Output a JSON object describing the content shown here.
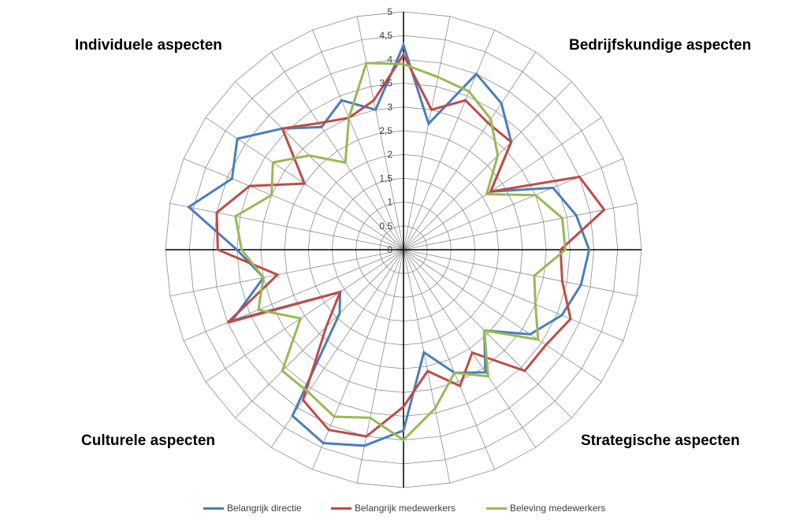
{
  "quadrant_titles": {
    "top_left": "Individuele aspecten",
    "top_right": "Bedrijfskundige aspecten",
    "bottom_left": "Culturele aspecten",
    "bottom_right": "Strategische aspecten"
  },
  "chart_data": {
    "type": "radar",
    "title": "",
    "axis_count": 32,
    "rmin": 0,
    "rmax": 5,
    "tick_step": 0.5,
    "tick_labels": [
      "0",
      "0,5",
      "1",
      "1,5",
      "2",
      "2,5",
      "3",
      "3,5",
      "4",
      "4,5",
      "5"
    ],
    "grid": true,
    "legend_position": "bottom",
    "series": [
      {
        "name": "Belangrijk directie",
        "color": "#4a7ebb",
        "values": [
          4.3,
          2.7,
          4.0,
          3.7,
          3.2,
          2.2,
          3.4,
          3.7,
          3.9,
          3.8,
          3.6,
          3.2,
          2.4,
          3.1,
          2.8,
          2.2,
          3.8,
          4.2,
          4.4,
          4.2,
          1.9,
          1.6,
          3.9,
          3.0,
          3.5,
          4.6,
          3.9,
          4.2,
          3.6,
          3.1,
          3.4,
          3.0
        ]
      },
      {
        "name": "Belangrijk medewerkers",
        "color": "#be4b48",
        "values": [
          4.1,
          3.0,
          3.4,
          3.2,
          3.2,
          2.2,
          4.0,
          4.3,
          3.3,
          3.4,
          3.8,
          3.6,
          3.6,
          2.6,
          3.1,
          2.6,
          3.3,
          4.0,
          4.1,
          3.8,
          2.3,
          1.6,
          4.0,
          2.7,
          3.9,
          4.0,
          3.5,
          2.5,
          3.6,
          3.2,
          3.0,
          3.2
        ]
      },
      {
        "name": "Beleving medewerkers",
        "color": "#98b954",
        "values": [
          3.9,
          3.7,
          3.6,
          3.3,
          2.8,
          2.1,
          3.0,
          3.4,
          3.4,
          2.8,
          3.0,
          3.4,
          2.4,
          3.2,
          2.8,
          3.4,
          4.0,
          3.6,
          3.8,
          3.6,
          3.6,
          2.6,
          3.3,
          3.0,
          3.4,
          3.6,
          3.0,
          3.3,
          2.8,
          2.2,
          3.0,
          4.0
        ]
      }
    ]
  }
}
